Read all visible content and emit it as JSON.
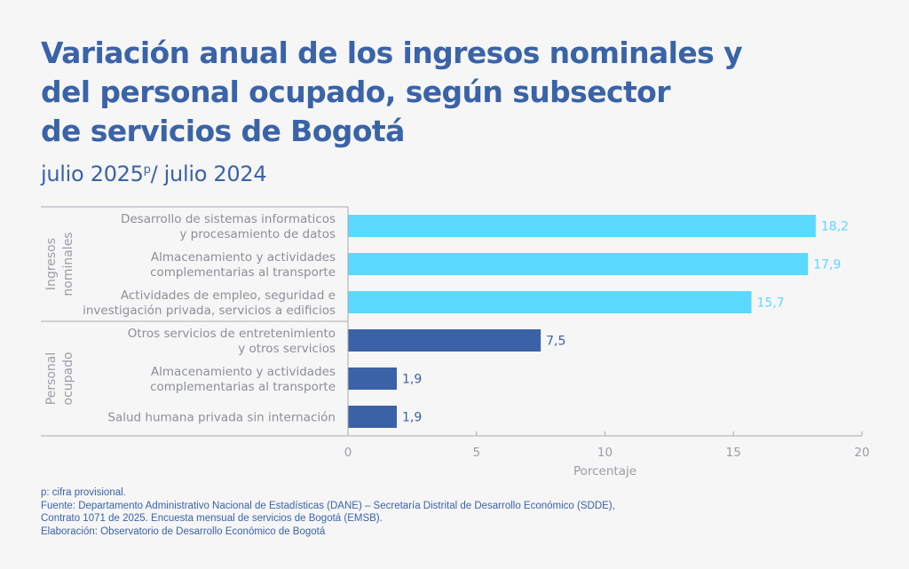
{
  "title_lines": [
    "Variación anual de los ingresos nominales y",
    "del personal ocupado, según subsector",
    "de servicios de Bogotá"
  ],
  "subtitle": {
    "pre": "julio 2025",
    "sup": "p",
    "post": "/ julio 2024"
  },
  "colors": {
    "title": "#3a63a8",
    "ingresos": "#5bd9ff",
    "personal": "#3a62a7",
    "ingresos_label": "#5bd9ff",
    "personal_label": "#3a62a7"
  },
  "chart_data": {
    "type": "bar",
    "orientation": "horizontal",
    "title": "Variación anual de los ingresos nominales y del personal ocupado, según subsector de servicios de Bogotá",
    "subtitle": "julio 2025p/ julio 2024",
    "xlabel": "Porcentaje",
    "ylabel": "",
    "xlim": [
      0,
      20
    ],
    "xticks": [
      0,
      5,
      10,
      15,
      20
    ],
    "xtick_labels": [
      "0",
      "5",
      "10",
      "15",
      "20"
    ],
    "grid": false,
    "groups": [
      {
        "name": "Ingresos nominales",
        "label_lines": [
          "Ingresos",
          "nominales"
        ],
        "color_key": "ingresos",
        "bars": [
          {
            "label_lines": [
              "Desarrollo de sistemas informaticos",
              "y procesamiento de datos"
            ],
            "value": 18.2,
            "value_label": "18,2"
          },
          {
            "label_lines": [
              "Almacenamiento y actividades",
              "complementarias al transporte"
            ],
            "value": 17.9,
            "value_label": "17,9"
          },
          {
            "label_lines": [
              "Actividades de empleo, seguridad e",
              "investigación privada, servicios a edificios"
            ],
            "value": 15.7,
            "value_label": "15,7"
          }
        ]
      },
      {
        "name": "Personal ocupado",
        "label_lines": [
          "Personal",
          "ocupado"
        ],
        "color_key": "personal",
        "bars": [
          {
            "label_lines": [
              "Otros servicios de entretenimiento",
              "y otros servicios"
            ],
            "value": 7.5,
            "value_label": "7,5"
          },
          {
            "label_lines": [
              "Almacenamiento y actividades",
              "complementarias al transporte"
            ],
            "value": 1.9,
            "value_label": "1,9"
          },
          {
            "label_lines": [
              "Salud humana privada sin internación"
            ],
            "value": 1.9,
            "value_label": "1,9"
          }
        ]
      }
    ]
  },
  "footer": {
    "lines": [
      "p: cifra provisional.",
      "Fuente: Departamento Administrativo Nacional de Estadísticas (DANE) – Secretaría Distrital de Desarrollo Económico (SDDE),",
      "Contrato 1071 de 2025. Encuesta mensual de servicios de Bogotá (EMSB).",
      "Elaboración: Observatorio de Desarrollo Económico de Bogotá"
    ]
  }
}
